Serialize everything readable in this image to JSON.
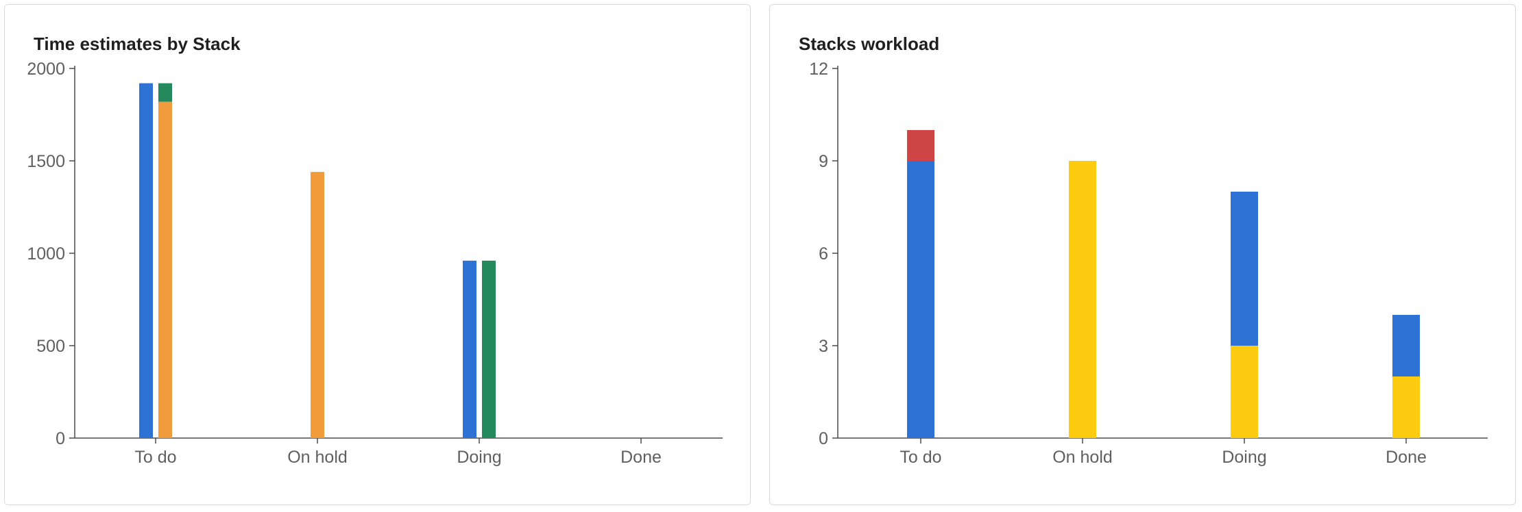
{
  "charts": [
    {
      "title": "Time estimates by Stack",
      "chart_data": {
        "type": "bar",
        "title": "Time estimates by Stack",
        "xlabel": "",
        "ylabel": "",
        "categories": [
          "To do",
          "On hold",
          "Doing",
          "Done"
        ],
        "ylim": [
          0,
          2000
        ],
        "yticks": [
          0,
          500,
          1000,
          1500,
          2000
        ],
        "ytick_labels": [
          "0",
          "500",
          "1000",
          "1500",
          "2000"
        ],
        "grid": false,
        "legend": "none",
        "stacked": true,
        "groups": [
          {
            "category": "To do",
            "bars": [
              {
                "segments": [
                  {
                    "value": 1920,
                    "color": "#2d72d4"
                  }
                ]
              },
              {
                "segments": [
                  {
                    "value": 1820,
                    "color": "#f09c3c"
                  },
                  {
                    "value": 100,
                    "color": "#24895c"
                  }
                ]
              }
            ]
          },
          {
            "category": "On hold",
            "bars": [
              {
                "segments": [
                  {
                    "value": 1440,
                    "color": "#f09c3c"
                  }
                ]
              }
            ]
          },
          {
            "category": "Doing",
            "bars": [
              {
                "segments": [
                  {
                    "value": 960,
                    "color": "#2d72d4"
                  }
                ]
              },
              {
                "segments": [
                  {
                    "value": 960,
                    "color": "#24895c"
                  }
                ]
              }
            ]
          },
          {
            "category": "Done",
            "bars": []
          }
        ]
      }
    },
    {
      "title": "Stacks workload",
      "chart_data": {
        "type": "bar",
        "title": "Stacks workload",
        "xlabel": "",
        "ylabel": "",
        "categories": [
          "To do",
          "On hold",
          "Doing",
          "Done"
        ],
        "ylim": [
          0,
          12
        ],
        "yticks": [
          0,
          3,
          6,
          9,
          12
        ],
        "ytick_labels": [
          "0",
          "3",
          "6",
          "9",
          "12"
        ],
        "grid": false,
        "legend": "none",
        "stacked": true,
        "groups": [
          {
            "category": "To do",
            "bars": [
              {
                "segments": [
                  {
                    "value": 9,
                    "color": "#2d72d4"
                  },
                  {
                    "value": 1,
                    "color": "#cf4545"
                  }
                ]
              }
            ]
          },
          {
            "category": "On hold",
            "bars": [
              {
                "segments": [
                  {
                    "value": 9,
                    "color": "#fdcb10"
                  }
                ]
              }
            ]
          },
          {
            "category": "Doing",
            "bars": [
              {
                "segments": [
                  {
                    "value": 3,
                    "color": "#fdcb10"
                  },
                  {
                    "value": 5,
                    "color": "#2d72d4"
                  }
                ]
              }
            ]
          },
          {
            "category": "Done",
            "bars": [
              {
                "segments": [
                  {
                    "value": 2,
                    "color": "#fdcb10"
                  },
                  {
                    "value": 2,
                    "color": "#2d72d4"
                  }
                ]
              }
            ]
          }
        ]
      }
    }
  ]
}
